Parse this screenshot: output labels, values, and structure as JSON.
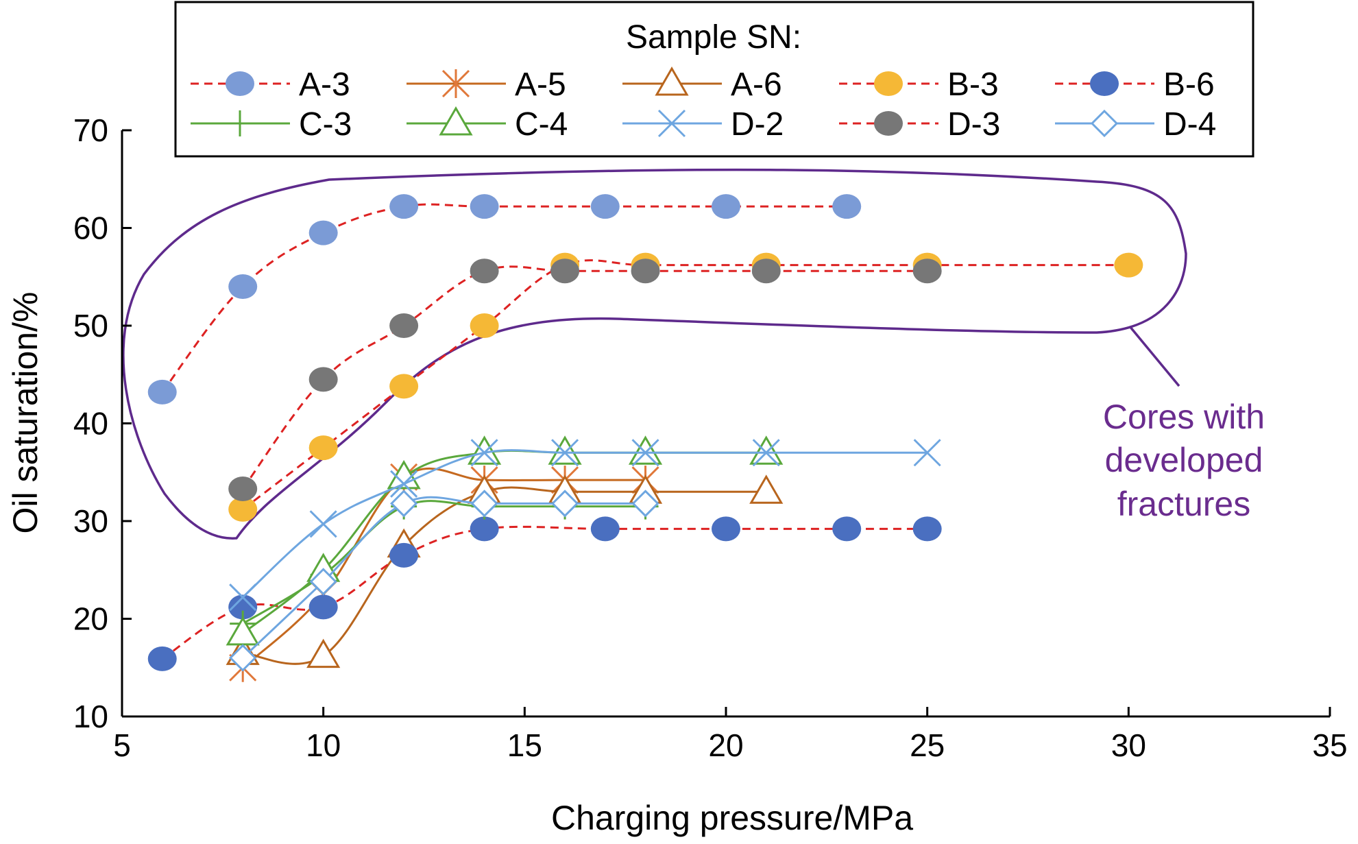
{
  "chart_data": {
    "type": "line",
    "xlabel": "Charging pressure/MPa",
    "ylabel": "Oil saturation/%",
    "xlim": [
      5,
      35
    ],
    "ylim": [
      10,
      70
    ],
    "xticks": [
      5,
      10,
      15,
      20,
      25,
      30,
      35
    ],
    "yticks": [
      10,
      20,
      30,
      40,
      50,
      60,
      70
    ],
    "grid": false,
    "legend": {
      "title": "Sample SN:",
      "position": "top"
    },
    "annotation": {
      "lines": [
        "Cores with",
        "developed",
        "fractures"
      ],
      "color": "#6a2c8e"
    },
    "series": [
      {
        "name": "A-3",
        "color": "#dd2222",
        "dash": true,
        "marker": "circle",
        "marker_color": "#7b9bd6",
        "x": [
          6,
          8,
          10,
          12,
          14,
          17,
          20,
          23
        ],
        "y": [
          43.2,
          54,
          59.5,
          62.2,
          62.2,
          62.2,
          62.2,
          62.2
        ]
      },
      {
        "name": "A-5",
        "color": "#c5691f",
        "dash": false,
        "marker": "asterisk",
        "marker_color": "#e0783a",
        "x": [
          8,
          10,
          12,
          14,
          16,
          18
        ],
        "y": [
          15,
          22.5,
          34.5,
          34.2,
          34.2,
          34.2
        ]
      },
      {
        "name": "A-6",
        "color": "#b8651d",
        "dash": false,
        "marker": "triangle",
        "marker_color": "#b8651d",
        "x": [
          8,
          10,
          12,
          14,
          16,
          18,
          21
        ],
        "y": [
          16.5,
          16.2,
          27.5,
          33,
          33,
          33,
          33
        ]
      },
      {
        "name": "B-3",
        "color": "#dd2222",
        "dash": true,
        "marker": "circle",
        "marker_color": "#f5b836",
        "x": [
          8,
          10,
          12,
          14,
          16,
          18,
          21,
          25,
          30
        ],
        "y": [
          31.2,
          37.5,
          43.8,
          50,
          56.2,
          56.2,
          56.2,
          56.2,
          56.2
        ]
      },
      {
        "name": "B-6",
        "color": "#dd2222",
        "dash": true,
        "marker": "circle",
        "marker_color": "#4a6fc0",
        "x": [
          6,
          8,
          10,
          12,
          14,
          17,
          20,
          23,
          25
        ],
        "y": [
          15.9,
          21.2,
          21.2,
          26.5,
          29.2,
          29.2,
          29.2,
          29.2,
          29.2
        ]
      },
      {
        "name": "C-3",
        "color": "#5aa83c",
        "dash": false,
        "marker": "plus",
        "marker_color": "#5aa83c",
        "x": [
          8,
          10,
          12,
          14,
          16,
          18
        ],
        "y": [
          19.5,
          24.5,
          31.5,
          31.5,
          31.5,
          31.5
        ]
      },
      {
        "name": "C-4",
        "color": "#5aa83c",
        "dash": false,
        "marker": "triangle",
        "marker_color": "#5aa83c",
        "x": [
          8,
          10,
          12,
          14,
          16,
          18,
          21
        ],
        "y": [
          18.5,
          25,
          34.5,
          37,
          37,
          37,
          37
        ]
      },
      {
        "name": "D-2",
        "color": "#6ea6e0",
        "dash": false,
        "marker": "x",
        "marker_color": "#6ea6e0",
        "x": [
          8,
          10,
          12,
          14,
          16,
          18,
          21,
          25
        ],
        "y": [
          22.2,
          29.7,
          33.8,
          37,
          37,
          37,
          37,
          37
        ]
      },
      {
        "name": "D-3",
        "color": "#dd2222",
        "dash": true,
        "marker": "circle",
        "marker_color": "#777777",
        "x": [
          8,
          10,
          12,
          14,
          16,
          18,
          21,
          25
        ],
        "y": [
          33.3,
          44.5,
          50,
          55.6,
          55.6,
          55.6,
          55.6,
          55.6
        ]
      },
      {
        "name": "D-4",
        "color": "#6ea6e0",
        "dash": false,
        "marker": "diamond",
        "marker_color": "#6ea6e0",
        "x": [
          8,
          10,
          12,
          14,
          16,
          18
        ],
        "y": [
          16,
          23.8,
          31.8,
          31.8,
          31.8,
          31.8
        ]
      }
    ]
  }
}
